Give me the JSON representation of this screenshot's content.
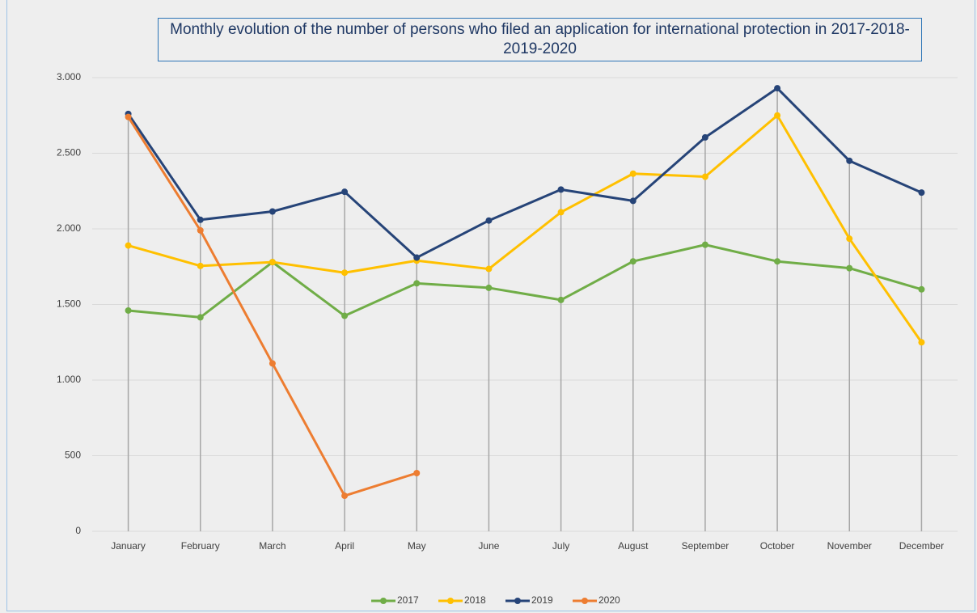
{
  "chart_data": {
    "type": "line",
    "title": "Monthly evolution of the number of persons who filed an application for international protection in 2017-2018-2019-2020",
    "categories": [
      "January",
      "February",
      "March",
      "April",
      "May",
      "June",
      "July",
      "August",
      "September",
      "October",
      "November",
      "December"
    ],
    "series": [
      {
        "name": "2017",
        "color": "#70ad47",
        "values": [
          1460,
          1415,
          1780,
          1425,
          1640,
          1610,
          1530,
          1785,
          1895,
          1785,
          1740,
          1600
        ]
      },
      {
        "name": "2018",
        "color": "#ffc000",
        "values": [
          1890,
          1755,
          1780,
          1710,
          1790,
          1735,
          2110,
          2365,
          2345,
          2750,
          1935,
          1250
        ]
      },
      {
        "name": "2019",
        "color": "#264478",
        "values": [
          2760,
          2060,
          2115,
          2245,
          1810,
          2055,
          2260,
          2185,
          2605,
          2930,
          2450,
          2240
        ]
      },
      {
        "name": "2020",
        "color": "#ed7d31",
        "values": [
          2740,
          1990,
          1110,
          235,
          385,
          null,
          null,
          null,
          null,
          null,
          null,
          null
        ]
      }
    ],
    "ylim": [
      0,
      3000
    ],
    "yticks": [
      0,
      500,
      {
        "value": 1000,
        "label": "1.000"
      },
      {
        "value": 1500,
        "label": "1.500"
      },
      {
        "value": 2000,
        "label": "2.000"
      },
      {
        "value": 2500,
        "label": "2.500"
      },
      {
        "value": 3000,
        "label": "3.000"
      }
    ],
    "grid": true,
    "legend": "bottom"
  }
}
